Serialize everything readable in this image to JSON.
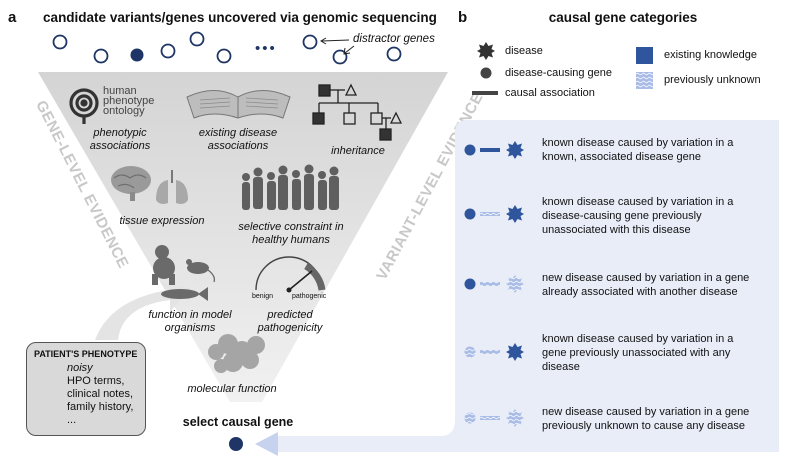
{
  "panel_a": {
    "letter": "a",
    "title": "candidate variants/genes uncovered via genomic sequencing",
    "distractor_label": "distractor genes",
    "ellipsis": "•••",
    "side_left": "GENE-LEVEL EVIDENCE",
    "side_right": "VARIANT-LEVEL EVIDENCE",
    "hpo_logo": [
      "human",
      "phenotype",
      "ontology"
    ],
    "evidence": {
      "phenotypic": "phenotypic associations",
      "existing": "existing disease associations",
      "inheritance": "inheritance",
      "tissue": "tissue expression",
      "constraint": "selective constraint in healthy humans",
      "model": "function in model organisms",
      "pathogenicity": "predicted pathogenicity",
      "molecular": "molecular function"
    },
    "gauge": {
      "benign": "benign",
      "pathogenic": "pathogenic"
    },
    "select_label": "select causal gene",
    "phenotype_box": {
      "title": "PATIENT'S PHENOTYPE",
      "subtitle": "noisy",
      "items": [
        "HPO terms,",
        "clinical notes,",
        "family history,",
        "..."
      ]
    }
  },
  "panel_b": {
    "letter": "b",
    "title": "causal gene categories",
    "legend": {
      "disease": "disease",
      "gene": "disease-causing gene",
      "association": "causal association",
      "existing": "existing knowledge",
      "unknown": "previously unknown"
    },
    "categories": [
      {
        "text": [
          "known disease caused by variation in a",
          "known, associated disease gene"
        ]
      },
      {
        "text": [
          "known disease caused by variation in a",
          "disease-causing gene previously",
          "unassociated with this disease"
        ]
      },
      {
        "text": [
          "new disease caused by variation in a gene",
          "already associated with another disease"
        ]
      },
      {
        "text": [
          "known disease caused by variation in a",
          "gene previously unassociated with any",
          "disease"
        ]
      },
      {
        "text": [
          "new disease caused by variation in a gene",
          "previously unknown to cause any disease"
        ]
      }
    ]
  },
  "colors": {
    "navy": "#1f3566",
    "known_blue": "#2f569c",
    "unknown_blue": "#9db2e0",
    "panel_bg": "#e8edf8",
    "funnel_gray": "#e6e6e6",
    "side_text_gray": "#c8c8c8"
  }
}
